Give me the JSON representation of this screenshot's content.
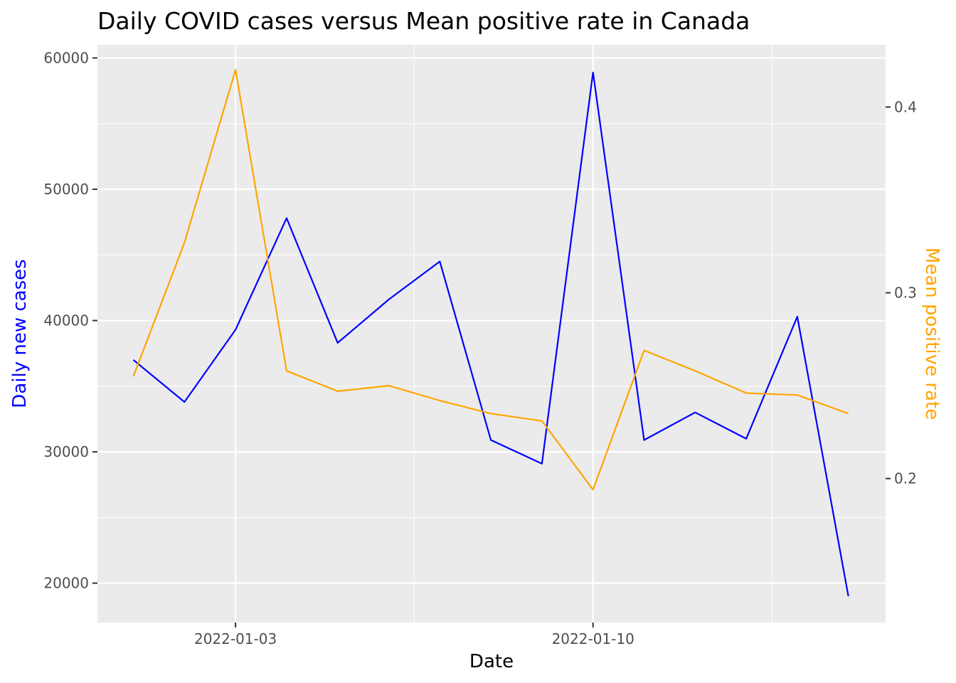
{
  "chart_data": {
    "type": "line",
    "title": "Daily COVID cases versus Mean positive rate in Canada",
    "xlabel": "Date",
    "ylabel": "Daily new cases",
    "ylabel_right": "Mean positive rate",
    "x": [
      "2022-01-01",
      "2022-01-02",
      "2022-01-03",
      "2022-01-04",
      "2022-01-05",
      "2022-01-06",
      "2022-01-07",
      "2022-01-08",
      "2022-01-09",
      "2022-01-10",
      "2022-01-11",
      "2022-01-12",
      "2022-01-13",
      "2022-01-14",
      "2022-01-15"
    ],
    "x_ticks": [
      "2022-01-03",
      "2022-01-10"
    ],
    "ylim": [
      17000,
      61000
    ],
    "y_ticks": [
      20000,
      30000,
      40000,
      50000,
      60000
    ],
    "y_tick_labels": [
      "20000",
      "30000",
      "40000",
      "50000",
      "60000"
    ],
    "y2lim": [
      0.1225,
      0.4335
    ],
    "y2_ticks": [
      0.2,
      0.3,
      0.4
    ],
    "y2_tick_labels": [
      "0.2",
      "0.3",
      "0.4"
    ],
    "grid": true,
    "series": [
      {
        "name": "Daily new cases",
        "axis": "left",
        "color": "#0000ff",
        "values": [
          37000,
          33800,
          39300,
          47800,
          38300,
          41600,
          44500,
          30900,
          29100,
          58900,
          30900,
          33000,
          31000,
          40300,
          19000
        ]
      },
      {
        "name": "Mean positive rate",
        "axis": "right",
        "color": "#ffa500",
        "values": [
          0.255,
          0.327,
          0.42,
          0.258,
          0.247,
          0.25,
          0.242,
          0.235,
          0.231,
          0.194,
          0.269,
          0.258,
          0.246,
          0.245,
          0.235
        ]
      }
    ]
  }
}
